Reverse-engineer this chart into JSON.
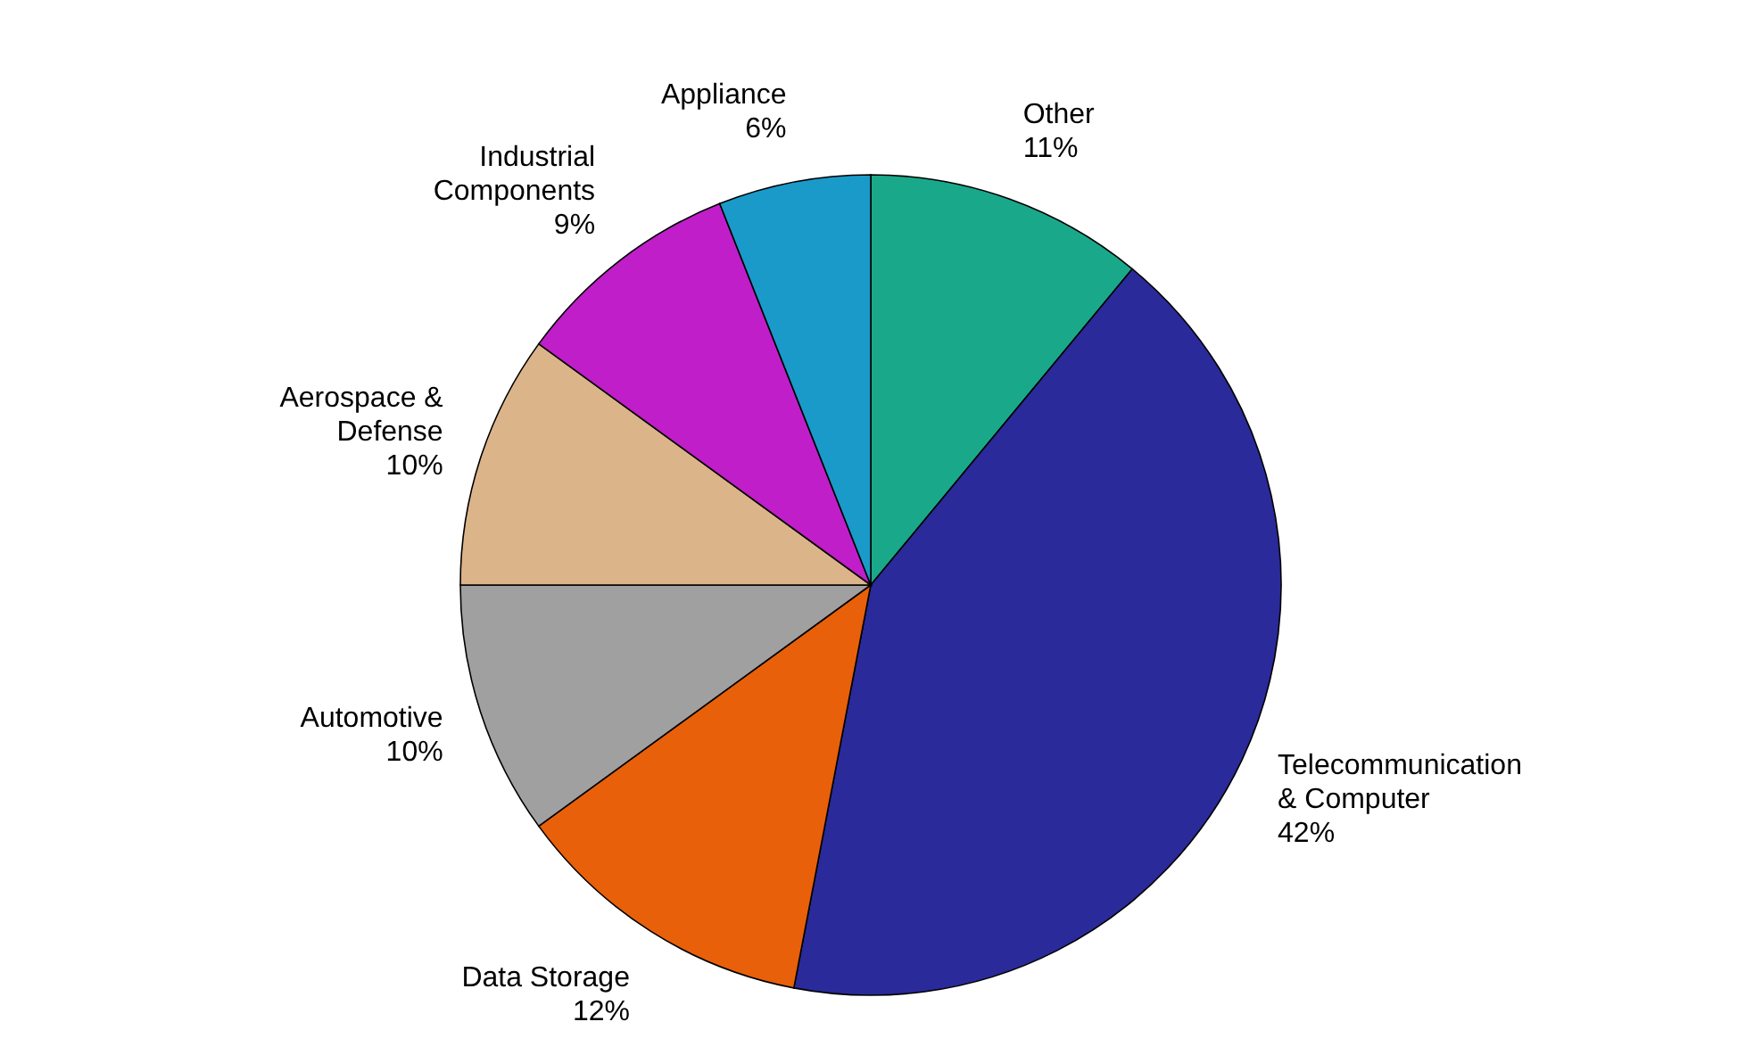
{
  "chart_data": {
    "type": "pie",
    "categories": [
      "Other",
      "Telecommunication & Computer",
      "Data Storage",
      "Automotive",
      "Aerospace & Defense",
      "Industrial Components",
      "Appliance"
    ],
    "values": [
      11,
      42,
      12,
      10,
      10,
      9,
      6
    ],
    "value_labels": [
      "11%",
      "42%",
      "12%",
      "10%",
      "10%",
      "9%",
      "6%"
    ],
    "colors": [
      "#1aa88a",
      "#2a2a9a",
      "#e8600a",
      "#a0a0a0",
      "#dcb48a",
      "#c01ec8",
      "#1a9ac8"
    ]
  }
}
